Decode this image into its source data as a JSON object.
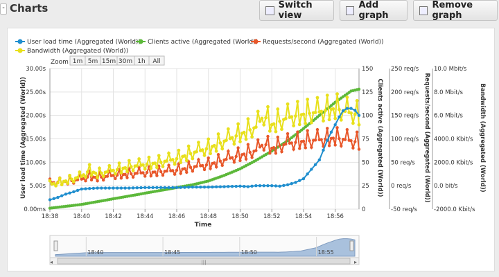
{
  "header": {
    "collapse_glyph": "-",
    "title": "Charts",
    "buttons": [
      {
        "label": "Switch view",
        "icon": "table-icon"
      },
      {
        "label": "Add graph",
        "icon": "chart-add-icon"
      },
      {
        "label": "Remove graph",
        "icon": "chart-remove-icon"
      }
    ]
  },
  "zoom": {
    "label": "Zoom",
    "options": [
      "1m",
      "5m",
      "15m",
      "30m",
      "1h",
      "All"
    ]
  },
  "navigator": {
    "labels": [
      "18:40",
      "18:45",
      "18:50",
      "18:55"
    ],
    "scroll_grip": "|||"
  },
  "colors": {
    "user_load": "#1f8ece",
    "clients": "#5cb83a",
    "requests": "#e8572a",
    "bandwidth": "#e8e01c"
  },
  "chart_data": {
    "type": "line",
    "xlabel": "Time",
    "x_ticks": [
      "18:38",
      "18:40",
      "18:42",
      "18:44",
      "18:46",
      "18:48",
      "18:50",
      "18:52",
      "18:54",
      "18:56"
    ],
    "x_range": [
      "18:38",
      "18:57:30"
    ],
    "grid": true,
    "legend_placement": "top-left",
    "axes": [
      {
        "id": "user",
        "label": "User load time (Aggregated (World))",
        "ticks": [
          "0.00ms",
          "5.00s",
          "10.00s",
          "15.00s",
          "20.00s",
          "25.00s",
          "30.00s"
        ],
        "range": [
          0,
          30
        ]
      },
      {
        "id": "clients",
        "label": "Clients active (Aggregated (World))",
        "ticks": [
          "0",
          "25",
          "50",
          "75",
          "100",
          "125",
          "150"
        ],
        "range": [
          0,
          150
        ]
      },
      {
        "id": "requests",
        "label": "Requests/second (Aggregated (World))",
        "ticks": [
          "-50 req/s",
          "0 req/s",
          "50 req/s",
          "100 req/s",
          "150 req/s",
          "200 req/s",
          "250 req/s"
        ],
        "range": [
          -50,
          250
        ]
      },
      {
        "id": "bandwidth",
        "label": "Bandwidth (Aggregated (World))",
        "ticks": [
          "-2000.0 Kbit/s",
          "0.0 bit/s",
          "2000.0 Kbit/s",
          "4000.0 Kbit/s",
          "6.0 Mbit/s",
          "8.0 Mbit/s",
          "10.0 Mbit/s"
        ],
        "range": [
          -2,
          10
        ]
      }
    ],
    "series": [
      {
        "name": "User load time (Aggregated (World))",
        "axis": "user",
        "unit": "s",
        "points": [
          [
            0,
            2
          ],
          [
            0.5,
            2.5
          ],
          [
            1,
            3.2
          ],
          [
            1.5,
            3.7
          ],
          [
            2,
            4.3
          ],
          [
            3,
            4.5
          ],
          [
            4,
            4.5
          ],
          [
            5,
            4.5
          ],
          [
            6,
            4.6
          ],
          [
            7,
            4.6
          ],
          [
            8,
            4.6
          ],
          [
            9,
            4.7
          ],
          [
            10,
            4.7
          ],
          [
            11,
            4.8
          ],
          [
            12,
            4.9
          ],
          [
            12.5,
            4.8
          ],
          [
            13,
            5.0
          ],
          [
            14,
            5.0
          ],
          [
            14.5,
            4.9
          ],
          [
            15,
            5.2
          ],
          [
            15.5,
            5.7
          ],
          [
            16,
            6.5
          ],
          [
            16.5,
            8.5
          ],
          [
            17,
            10.5
          ],
          [
            17.3,
            13.0
          ],
          [
            17.6,
            15.5
          ],
          [
            18,
            18.0
          ],
          [
            18.3,
            20.0
          ],
          [
            18.6,
            21.5
          ],
          [
            19,
            21.5
          ],
          [
            19.3,
            21.0
          ],
          [
            19.5,
            20.0
          ]
        ]
      },
      {
        "name": "Clients active (Aggregated (World))",
        "axis": "clients",
        "unit": "",
        "points": [
          [
            0,
            1
          ],
          [
            1,
            3
          ],
          [
            2,
            5
          ],
          [
            3,
            8
          ],
          [
            4,
            11
          ],
          [
            5,
            14
          ],
          [
            6,
            17
          ],
          [
            7,
            20
          ],
          [
            8,
            23
          ],
          [
            9,
            26
          ],
          [
            10,
            30
          ],
          [
            11,
            36
          ],
          [
            12,
            43
          ],
          [
            13,
            52
          ],
          [
            14,
            62
          ],
          [
            15,
            73
          ],
          [
            16,
            86
          ],
          [
            17,
            100
          ],
          [
            18,
            114
          ],
          [
            19,
            126
          ],
          [
            19.5,
            128
          ]
        ]
      },
      {
        "name": "Requests/second (Aggregated (World))",
        "axis": "requests",
        "unit": "req/s",
        "points": [
          [
            0,
            6
          ],
          [
            1,
            9
          ],
          [
            2,
            14
          ],
          [
            2.5,
            20
          ],
          [
            3,
            17
          ],
          [
            4,
            22
          ],
          [
            5,
            25
          ],
          [
            6,
            28
          ],
          [
            7,
            30
          ],
          [
            8,
            33
          ],
          [
            9,
            40
          ],
          [
            10,
            45
          ],
          [
            11,
            55
          ],
          [
            12,
            65
          ],
          [
            13,
            75
          ],
          [
            13.5,
            90
          ],
          [
            14,
            80
          ],
          [
            15,
            90
          ],
          [
            16,
            95
          ],
          [
            17,
            98
          ],
          [
            18,
            102
          ],
          [
            19,
            96
          ],
          [
            19.5,
            92
          ]
        ]
      },
      {
        "name": "Bandwidth (Aggregated (World))",
        "axis": "bandwidth",
        "unit": "bit/s",
        "points": [
          [
            0,
            0.1
          ],
          [
            1,
            0.4
          ],
          [
            2,
            0.8
          ],
          [
            2.5,
            1.3
          ],
          [
            3,
            1.0
          ],
          [
            4,
            1.3
          ],
          [
            5,
            1.6
          ],
          [
            6,
            1.8
          ],
          [
            7,
            2.0
          ],
          [
            8,
            2.3
          ],
          [
            9,
            2.8
          ],
          [
            10,
            3.2
          ],
          [
            11,
            3.8
          ],
          [
            12,
            4.4
          ],
          [
            13,
            5.0
          ],
          [
            13.5,
            6.0
          ],
          [
            14,
            5.2
          ],
          [
            15,
            5.8
          ],
          [
            16,
            6.1
          ],
          [
            17,
            6.3
          ],
          [
            18,
            6.6
          ],
          [
            19,
            6.2
          ],
          [
            19.5,
            6.0
          ]
        ]
      }
    ]
  }
}
